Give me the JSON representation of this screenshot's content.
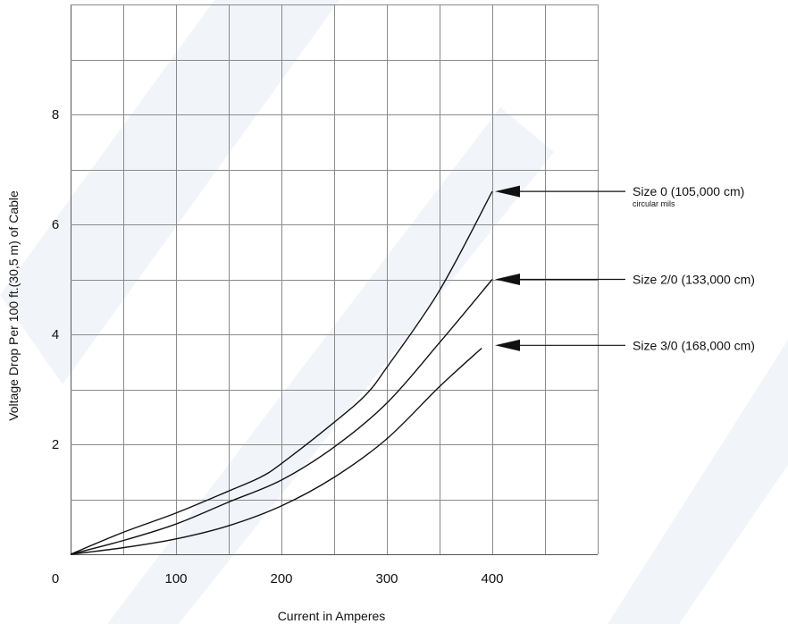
{
  "chart_data": {
    "type": "line",
    "title": "",
    "xlabel": "Current in Amperes",
    "ylabel": "Voltage Drop Per 100 ft.(30,5 m) of Cable",
    "xlim": [
      0,
      500
    ],
    "ylim": [
      0,
      10
    ],
    "x_ticks": [
      0,
      100,
      200,
      300,
      400
    ],
    "x_tick_labels": [
      "0",
      "100",
      "200",
      "300",
      "400"
    ],
    "y_ticks": [
      2,
      4,
      6,
      8
    ],
    "y_tick_labels": [
      "2",
      "4",
      "6",
      "8"
    ],
    "grid": true,
    "series": [
      {
        "x": [
          0,
          50,
          100,
          150,
          180,
          200,
          250,
          280,
          300,
          350,
          400
        ],
        "y": [
          0,
          0.4,
          0.75,
          1.15,
          1.4,
          1.65,
          2.4,
          2.9,
          3.4,
          4.8,
          6.6
        ]
      },
      {
        "x": [
          0,
          50,
          100,
          150,
          200,
          250,
          300,
          350,
          400
        ],
        "y": [
          0,
          0.25,
          0.55,
          0.95,
          1.35,
          1.95,
          2.75,
          3.85,
          5.0
        ]
      },
      {
        "x": [
          0,
          50,
          100,
          150,
          200,
          250,
          300,
          350,
          390
        ],
        "y": [
          0,
          0.12,
          0.28,
          0.52,
          0.88,
          1.4,
          2.1,
          3.05,
          3.75
        ]
      }
    ],
    "annotations": [
      {
        "label": "Size 0 (105,000 cm)",
        "sublabel": "circular mils",
        "x": 400,
        "y": 6.6
      },
      {
        "label": "Size 2/0 (133,000 cm)",
        "sublabel": "",
        "x": 400,
        "y": 5.0
      },
      {
        "label": "Size 3/0 (168,000 cm)",
        "sublabel": "",
        "x": 400,
        "y": 3.8
      }
    ]
  }
}
